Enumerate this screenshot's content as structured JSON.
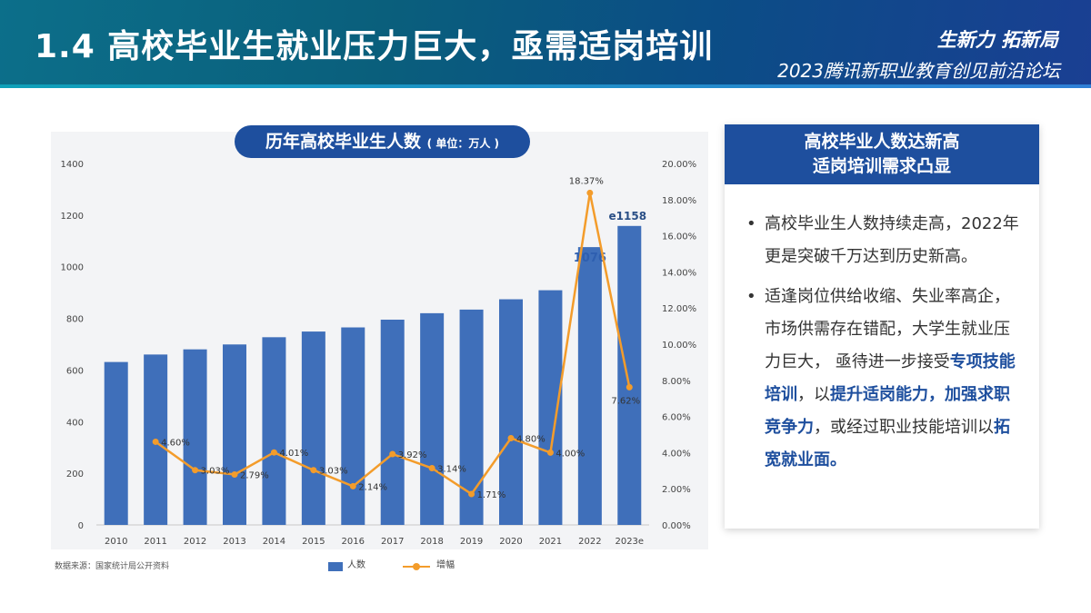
{
  "header": {
    "title": "1.4 高校毕业生就业压力巨大，亟需适岗培训",
    "slogan": "生新力 拓新局",
    "subtitle": "2023腾讯新职业教育创见前沿论坛"
  },
  "chart_header": {
    "title": "历年高校毕业生人数",
    "unit": "( 单位：万人 )"
  },
  "chart_data": {
    "type": "bar",
    "categories": [
      "2010",
      "2011",
      "2012",
      "2013",
      "2014",
      "2015",
      "2016",
      "2017",
      "2018",
      "2019",
      "2020",
      "2021",
      "2022",
      "2023e"
    ],
    "series": [
      {
        "name": "人数",
        "type": "bar",
        "axis": "left",
        "values": [
          631,
          660,
          680,
          699,
          727,
          749,
          765,
          795,
          820,
          834,
          874,
          909,
          1076,
          1158
        ]
      },
      {
        "name": "增幅",
        "type": "line",
        "axis": "right",
        "values": [
          null,
          4.6,
          3.03,
          2.79,
          4.01,
          3.03,
          2.14,
          3.92,
          3.14,
          1.71,
          4.8,
          4.0,
          18.37,
          7.62
        ]
      }
    ],
    "bar_labels": {
      "12": "1076",
      "13": "e1158"
    },
    "line_labels": [
      "",
      "4.60%",
      "3.03%",
      "2.79%",
      "4.01%",
      "3.03%",
      "2.14%",
      "3.92%",
      "3.14%",
      "1.71%",
      "4.80%",
      "4.00%",
      "18.37%",
      "7.62%"
    ],
    "ylim_left": [
      0,
      1400
    ],
    "yticks_left": [
      "0",
      "200",
      "400",
      "600",
      "800",
      "1000",
      "1200",
      "1400"
    ],
    "ylim_right": [
      0,
      20
    ],
    "yticks_right": [
      "0.00%",
      "2.00%",
      "4.00%",
      "6.00%",
      "8.00%",
      "10.00%",
      "12.00%",
      "14.00%",
      "16.00%",
      "18.00%",
      "20.00%"
    ],
    "colors": {
      "bar": "#3f6fba",
      "line": "#f39c2b"
    },
    "legend": [
      "人数",
      "增幅"
    ],
    "source": "数据来源：国家统计局公开资料"
  },
  "panel": {
    "head_line1": "高校毕业人数达新高",
    "head_line2": "适岗培训需求凸显",
    "bullet1": "高校毕业生人数持续走高，2022年更是突破千万达到历史新高。",
    "b2_part1": "适逢岗位供给收缩、失业率高企，市场供需存在错配，大学生就业压力巨大， 亟待进一步接受",
    "b2_hl1": "专项技能培训",
    "b2_part2": "，以",
    "b2_hl2": "提升适岗能力，加强求职竞争力",
    "b2_part3": "，或经过职业技能培训以",
    "b2_hl3": "拓宽就业面。"
  }
}
